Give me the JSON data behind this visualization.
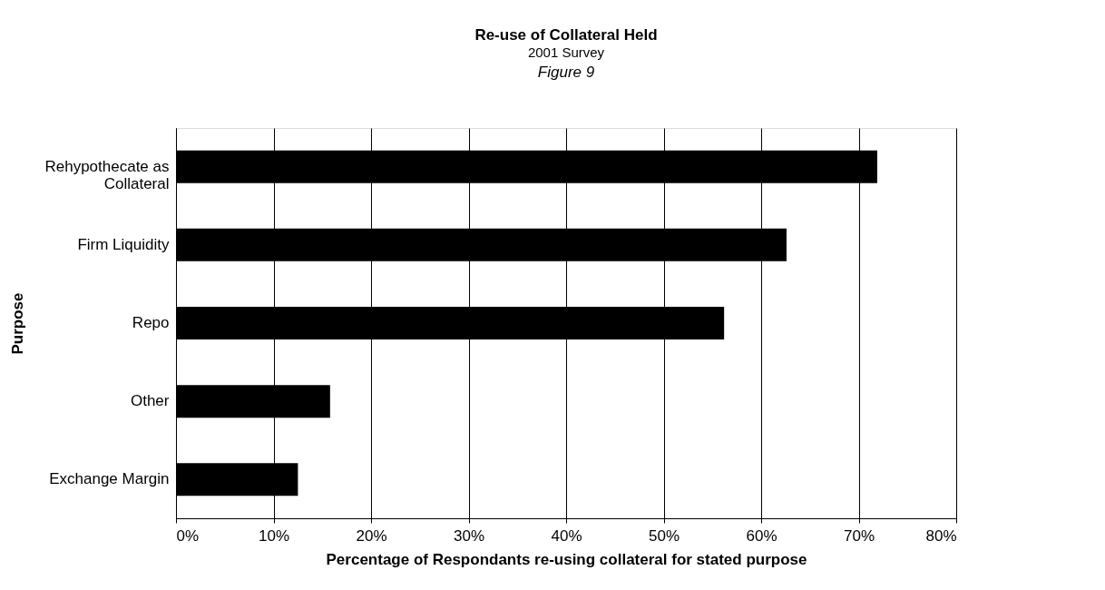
{
  "chart_data": {
    "type": "bar",
    "orientation": "horizontal",
    "title": "Re-use of Collateral Held",
    "subtitle": "2001 Survey",
    "annotations": [
      "Figure 9"
    ],
    "xlabel": "Percentage of Respondants re-using collateral for stated purpose",
    "ylabel": "Purpose",
    "categories": [
      [
        "Rehypothecate as",
        "Collateral"
      ],
      "Firm Liquidity",
      "Repo",
      "Other",
      "Exchange Margin"
    ],
    "values": [
      71.9,
      62.6,
      56.2,
      15.8,
      12.5
    ],
    "color": "#000000",
    "xlim": [
      0,
      80
    ],
    "xticks": [
      {
        "value": 0,
        "label": "0%"
      },
      {
        "value": 10,
        "label": "10%"
      },
      {
        "value": 20,
        "label": "20%"
      },
      {
        "value": 30,
        "label": "30%"
      },
      {
        "value": 40,
        "label": "40%"
      },
      {
        "value": 50,
        "label": "50%"
      },
      {
        "value": 60,
        "label": "60%"
      },
      {
        "value": 70,
        "label": "70%"
      },
      {
        "value": 80,
        "label": "80%"
      }
    ],
    "grid": "x"
  }
}
